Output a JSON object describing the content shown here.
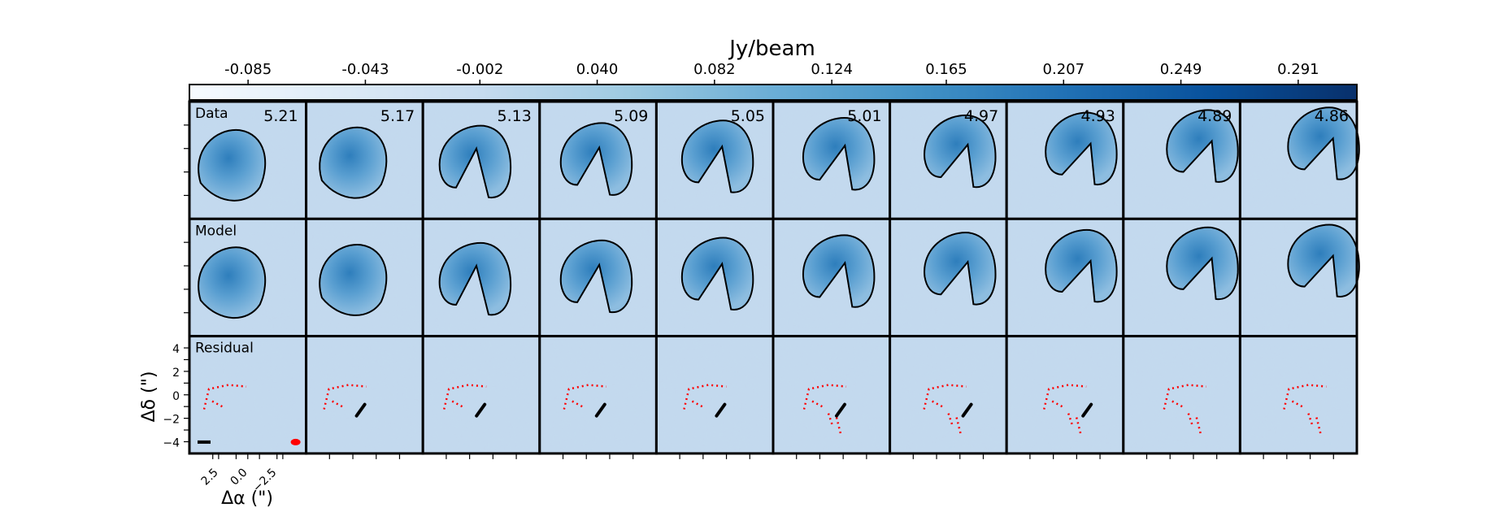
{
  "chart_data": {
    "type": "heatmap",
    "title": "",
    "colorbar": {
      "label": "Jy/beam",
      "ticks": [
        "-0.085",
        "-0.043",
        "-0.002",
        "0.040",
        "0.082",
        "0.124",
        "0.165",
        "0.207",
        "0.249",
        "0.291"
      ],
      "range": [
        -0.106,
        0.312
      ],
      "colormap": "Blues"
    },
    "rows": [
      "Data",
      "Model",
      "Residual"
    ],
    "channels": [
      "5.21",
      "5.17",
      "5.13",
      "5.09",
      "5.05",
      "5.01",
      "4.97",
      "4.93",
      "4.89",
      "4.86"
    ],
    "xlabel": "Δα (\")",
    "ylabel": "Δδ (\")",
    "xticks": [
      "2.5",
      "0.0",
      "−2.5"
    ],
    "yticks": [
      "4",
      "2",
      "0",
      "−2",
      "−4"
    ],
    "xlim": [
      5,
      -5
    ],
    "ylim": [
      -5,
      5
    ],
    "contour_colors": {
      "positive": "#000000",
      "negative": "#ff0000"
    },
    "beam_color": "#ff0000",
    "scale_bar_color": "#000000"
  }
}
